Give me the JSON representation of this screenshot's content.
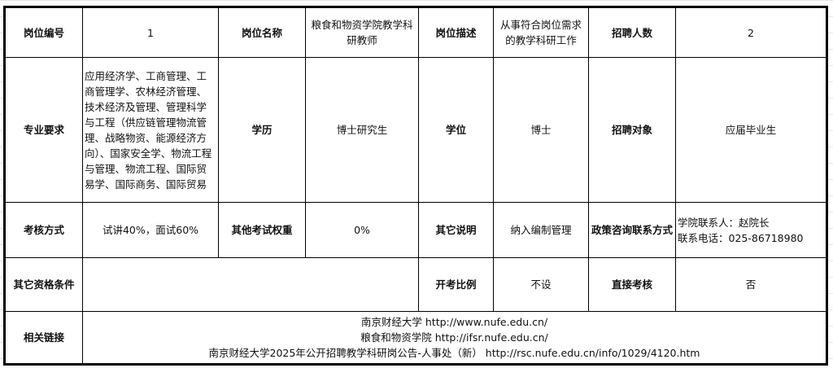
{
  "row1": {
    "id_label": "岗位编号",
    "id_value": "1",
    "name_label": "岗位名称",
    "name_value": "粮食和物资学院教学科研教师",
    "desc_label": "岗位描述",
    "desc_value": "从事符合岗位需求的教学科研工作",
    "count_label": "招聘人数",
    "count_value": "2"
  },
  "row2": {
    "major_label": "专业要求",
    "major_value": "应用经济学、工商管理、工商管理学、农林经济管理、技术经济及管理、管理科学与工程（供应链管理物流管理、战略物资、能源经济方向）、国家安全学、物流工程与管理、物流工程、国际贸易学、国际商务、国际贸易",
    "edu_label": "学历",
    "edu_value": "博士研究生",
    "degree_label": "学位",
    "degree_value": "博士",
    "target_label": "招聘对象",
    "target_value": "应届毕业生"
  },
  "row3": {
    "exam_label": "考核方式",
    "exam_value": "试讲40%，面试60%",
    "weight_label": "其他考试权重",
    "weight_value": "0%",
    "note_label": "其它说明",
    "note_value": "纳入编制管理",
    "contact_label": "政策咨询联系方式",
    "contact_person": "学院联系人：赵院长",
    "contact_phone": "联系电话：025-86718980"
  },
  "row4": {
    "other_label": "其它资格条件",
    "other_value": "",
    "ratio_label": "开考比例",
    "ratio_value": "不设",
    "direct_label": "直接考核",
    "direct_value": "否"
  },
  "row5": {
    "links_label": "相关链接",
    "links": [
      "南京财经大学  http://www.nufe.edu.cn/",
      "粮食和物资学院  http://ifsr.nufe.edu.cn/",
      "南京财经大学2025年公开招聘教学科研岗公告-人事处（新）   http://rsc.nufe.edu.cn/info/1029/4120.htm"
    ]
  }
}
